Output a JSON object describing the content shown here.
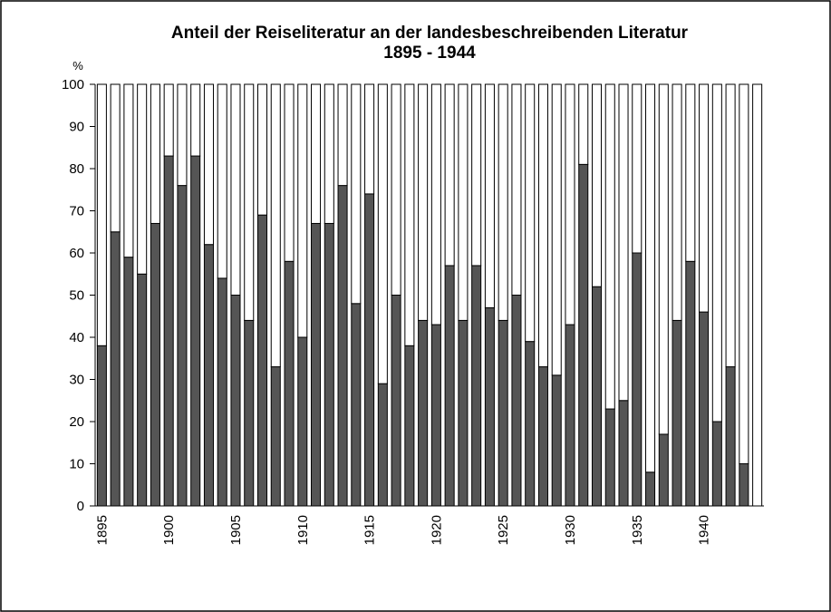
{
  "chart_data": {
    "type": "stacked-bar",
    "title": "Anteil der Reiseliteratur an der landesbeschreibenden Literatur",
    "subtitle": "1895 - 1944",
    "y_label": "%",
    "categories": [
      "1895",
      null,
      null,
      null,
      null,
      "1900",
      null,
      null,
      null,
      null,
      "1905",
      null,
      null,
      null,
      null,
      "1910",
      null,
      null,
      null,
      null,
      "1915",
      null,
      null,
      null,
      null,
      "1920",
      null,
      null,
      null,
      null,
      "1925",
      null,
      null,
      null,
      null,
      "1930",
      null,
      null,
      null,
      null,
      "1935",
      null,
      null,
      null,
      null,
      "1940",
      null,
      null,
      null,
      null
    ],
    "series": [
      {
        "color": "#555555",
        "values": [
          38,
          65,
          59,
          55,
          67,
          83,
          76,
          83,
          62,
          54,
          50,
          44,
          69,
          33,
          58,
          40,
          67,
          67,
          76,
          48,
          74,
          29,
          50,
          38,
          44,
          43,
          57,
          44,
          57,
          47,
          44,
          50,
          39,
          33,
          31,
          43,
          81,
          52,
          23,
          25,
          60,
          8,
          17,
          44,
          58,
          46,
          20,
          33,
          10,
          0
        ]
      },
      {
        "color": "#ffffff",
        "values": [
          62,
          35,
          41,
          45,
          33,
          17,
          24,
          17,
          38,
          46,
          50,
          56,
          31,
          67,
          42,
          60,
          33,
          33,
          24,
          52,
          26,
          71,
          50,
          62,
          56,
          57,
          43,
          56,
          43,
          53,
          56,
          50,
          61,
          67,
          69,
          57,
          19,
          48,
          77,
          75,
          40,
          92,
          83,
          56,
          42,
          54,
          80,
          67,
          90,
          100
        ]
      }
    ],
    "ylim": [
      0,
      100
    ],
    "yticks": [
      0,
      10,
      20,
      30,
      40,
      50,
      60,
      70,
      80,
      90,
      100
    ]
  }
}
